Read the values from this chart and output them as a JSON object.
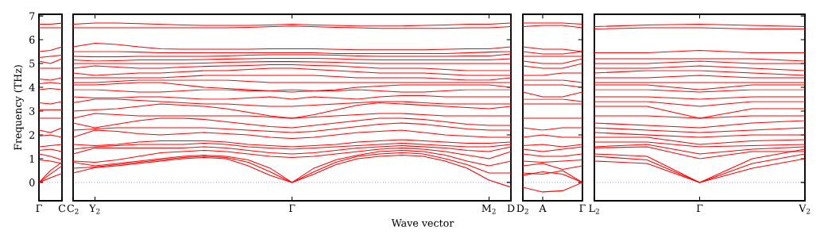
{
  "chart_data": [
    {
      "type": "line",
      "ylabel": "Frequency (THz)",
      "categories": [
        "Γ",
        null,
        "C"
      ],
      "ylim": [
        -0.77,
        7.07
      ],
      "yticks": [
        0,
        1,
        2,
        3,
        4,
        5,
        6,
        7
      ],
      "ref_lines": [
        {
          "axis": "y",
          "value": 0,
          "color": "#0000ff",
          "line_style": "dotted"
        }
      ],
      "series": [
        {
          "color": "#ff0000",
          "values": [
            0,
            0.2,
            0.38
          ]
        },
        {
          "color": "#ff0000",
          "values": [
            0,
            0.35,
            0.7
          ]
        },
        {
          "color": "#ff0000",
          "values": [
            0,
            0.5,
            0.85
          ]
        },
        {
          "color": "#ff0000",
          "values": [
            0.95,
            0.9,
            0.8
          ]
        },
        {
          "color": "#ff0000",
          "values": [
            1.2,
            1.1,
            0.95
          ]
        },
        {
          "color": "#ff0000",
          "values": [
            1.35,
            1.4,
            1.3
          ]
        },
        {
          "color": "#ff0000",
          "values": [
            1.5,
            1.55,
            1.6
          ]
        },
        {
          "color": "#ff0000",
          "values": [
            1.95,
            2.0,
            1.9
          ]
        },
        {
          "color": "#ff0000",
          "values": [
            2.2,
            2.1,
            2.3
          ]
        },
        {
          "color": "#ff0000",
          "values": [
            2.7,
            2.7,
            2.7
          ]
        },
        {
          "color": "#ff0000",
          "values": [
            3.05,
            3.05,
            3.05
          ]
        },
        {
          "color": "#ff0000",
          "values": [
            3.35,
            3.3,
            3.4
          ]
        },
        {
          "color": "#ff0000",
          "values": [
            3.9,
            3.95,
            3.9
          ]
        },
        {
          "color": "#ff0000",
          "values": [
            4.15,
            4.2,
            4.15
          ]
        },
        {
          "color": "#ff0000",
          "values": [
            4.35,
            4.3,
            4.4
          ]
        },
        {
          "color": "#ff0000",
          "values": [
            4.8,
            4.8,
            4.8
          ]
        },
        {
          "color": "#ff0000",
          "values": [
            5.1,
            5.0,
            5.2
          ]
        },
        {
          "color": "#ff0000",
          "values": [
            5.25,
            5.3,
            5.35
          ]
        },
        {
          "color": "#ff0000",
          "values": [
            5.5,
            5.55,
            5.7
          ]
        },
        {
          "color": "#ff0000",
          "values": [
            6.5,
            6.5,
            6.5
          ]
        },
        {
          "color": "#ff0000",
          "values": [
            6.65,
            6.65,
            6.7
          ]
        }
      ]
    },
    {
      "type": "line",
      "xlabel": "Wave vector",
      "tick_labels": "x",
      "categories": [
        "C$_{2}$",
        "Y$_{2}$",
        null,
        null,
        null,
        null,
        null,
        null,
        null,
        null,
        "Γ",
        null,
        null,
        null,
        null,
        null,
        null,
        null,
        null,
        "M$_{2}$",
        "D"
      ],
      "ylim": [
        -0.77,
        7.07
      ],
      "ref_lines": [
        {
          "axis": "y",
          "value": 0,
          "color": "#0000ff",
          "line_style": "dotted"
        }
      ],
      "series": [
        {
          "color": "#ff0000",
          "values": [
            0.4,
            0.62,
            0.7,
            0.8,
            0.9,
            1.0,
            1.05,
            1.0,
            0.7,
            0.3,
            0,
            0.35,
            0.75,
            1.0,
            1.1,
            1.15,
            1.1,
            0.9,
            0.6,
            0.1,
            -0.2
          ]
        },
        {
          "color": "#ff0000",
          "values": [
            0.6,
            0.65,
            0.75,
            0.85,
            0.95,
            1.05,
            1.1,
            1.05,
            0.85,
            0.45,
            0,
            0.45,
            0.85,
            1.1,
            1.2,
            1.25,
            1.2,
            1.0,
            0.75,
            0.4,
            0.4
          ]
        },
        {
          "color": "#ff0000",
          "values": [
            0.85,
            0.7,
            0.8,
            0.9,
            1.0,
            1.1,
            1.15,
            1.1,
            0.95,
            0.6,
            0,
            0.6,
            0.95,
            1.15,
            1.3,
            1.35,
            1.3,
            1.15,
            0.9,
            0.7,
            0.9
          ]
        },
        {
          "color": "#ff0000",
          "values": [
            0.9,
            0.85,
            0.95,
            1.1,
            1.25,
            1.3,
            1.35,
            1.3,
            1.2,
            1.1,
            1.05,
            1.1,
            1.2,
            1.3,
            1.4,
            1.45,
            1.4,
            1.3,
            1.15,
            1.0,
            1.3
          ]
        },
        {
          "color": "#ff0000",
          "values": [
            1.2,
            1.45,
            1.45,
            1.45,
            1.45,
            1.45,
            1.5,
            1.45,
            1.35,
            1.25,
            1.2,
            1.25,
            1.35,
            1.45,
            1.5,
            1.55,
            1.5,
            1.45,
            1.35,
            1.3,
            1.5
          ]
        },
        {
          "color": "#ff0000",
          "values": [
            1.4,
            1.5,
            1.55,
            1.6,
            1.6,
            1.6,
            1.65,
            1.6,
            1.5,
            1.45,
            1.4,
            1.45,
            1.5,
            1.55,
            1.6,
            1.65,
            1.6,
            1.55,
            1.5,
            1.5,
            1.6
          ]
        },
        {
          "color": "#ff0000",
          "values": [
            1.6,
            1.55,
            1.6,
            1.7,
            1.75,
            1.75,
            1.75,
            1.7,
            1.6,
            1.55,
            1.5,
            1.55,
            1.6,
            1.7,
            1.75,
            1.8,
            1.75,
            1.7,
            1.65,
            1.65,
            1.7
          ]
        },
        {
          "color": "#ff0000",
          "values": [
            1.9,
            2.2,
            2.15,
            2.05,
            2.0,
            2.05,
            2.1,
            2.05,
            2.0,
            1.9,
            1.85,
            1.9,
            2.0,
            2.1,
            2.15,
            2.2,
            2.1,
            2.0,
            1.95,
            1.9,
            1.9
          ]
        },
        {
          "color": "#ff0000",
          "values": [
            2.2,
            2.25,
            2.3,
            2.3,
            2.3,
            2.3,
            2.3,
            2.25,
            2.2,
            2.15,
            2.1,
            2.15,
            2.25,
            2.35,
            2.45,
            2.5,
            2.45,
            2.35,
            2.25,
            2.2,
            2.2
          ]
        },
        {
          "color": "#ff0000",
          "values": [
            2.5,
            2.3,
            2.45,
            2.6,
            2.7,
            2.7,
            2.65,
            2.55,
            2.45,
            2.35,
            2.3,
            2.4,
            2.5,
            2.6,
            2.7,
            2.7,
            2.65,
            2.55,
            2.45,
            2.4,
            2.4
          ]
        },
        {
          "color": "#ff0000",
          "values": [
            2.7,
            2.9,
            2.85,
            2.8,
            2.8,
            2.8,
            2.8,
            2.8,
            2.8,
            2.75,
            2.7,
            2.75,
            2.8,
            2.85,
            2.9,
            2.9,
            2.85,
            2.8,
            2.8,
            2.8,
            2.8
          ]
        },
        {
          "color": "#ff0000",
          "values": [
            3.0,
            3.05,
            3.1,
            3.2,
            3.3,
            3.25,
            3.2,
            3.1,
            2.95,
            2.8,
            2.7,
            2.85,
            3.05,
            3.25,
            3.35,
            3.3,
            3.25,
            3.2,
            3.15,
            3.1,
            3.2
          ]
        },
        {
          "color": "#ff0000",
          "values": [
            3.35,
            3.5,
            3.5,
            3.45,
            3.4,
            3.35,
            3.3,
            3.3,
            3.25,
            3.2,
            3.2,
            3.25,
            3.3,
            3.35,
            3.4,
            3.4,
            3.35,
            3.3,
            3.3,
            3.3,
            3.3
          ]
        },
        {
          "color": "#ff0000",
          "values": [
            3.6,
            3.55,
            3.55,
            3.6,
            3.6,
            3.55,
            3.5,
            3.5,
            3.55,
            3.6,
            3.5,
            3.6,
            3.55,
            3.5,
            3.6,
            3.65,
            3.65,
            3.6,
            3.6,
            3.6,
            3.6
          ]
        },
        {
          "color": "#ff0000",
          "values": [
            3.9,
            3.9,
            3.85,
            3.8,
            3.8,
            3.85,
            3.9,
            3.9,
            3.85,
            3.85,
            3.9,
            3.85,
            3.85,
            3.9,
            3.85,
            3.8,
            3.8,
            3.85,
            3.9,
            3.9,
            3.9
          ]
        },
        {
          "color": "#ff0000",
          "values": [
            4.1,
            4.1,
            4.15,
            4.2,
            4.2,
            4.1,
            4.0,
            3.95,
            3.9,
            3.85,
            3.8,
            3.85,
            3.9,
            4.0,
            4.05,
            4.1,
            4.1,
            4.1,
            4.1,
            4.1,
            4.0
          ]
        },
        {
          "color": "#ff0000",
          "values": [
            4.2,
            4.2,
            4.25,
            4.3,
            4.3,
            4.3,
            4.3,
            4.3,
            4.25,
            4.2,
            4.2,
            4.2,
            4.2,
            4.2,
            4.2,
            4.2,
            4.2,
            4.2,
            4.2,
            4.2,
            4.2
          ]
        },
        {
          "color": "#ff0000",
          "values": [
            4.4,
            4.4,
            4.4,
            4.4,
            4.4,
            4.45,
            4.5,
            4.5,
            4.5,
            4.5,
            4.5,
            4.5,
            4.45,
            4.4,
            4.4,
            4.4,
            4.4,
            4.35,
            4.3,
            4.3,
            4.4
          ]
        },
        {
          "color": "#ff0000",
          "values": [
            4.6,
            4.5,
            4.55,
            4.6,
            4.6,
            4.65,
            4.7,
            4.7,
            4.75,
            4.8,
            4.8,
            4.75,
            4.7,
            4.65,
            4.6,
            4.6,
            4.6,
            4.55,
            4.5,
            4.5,
            4.5
          ]
        },
        {
          "color": "#ff0000",
          "values": [
            4.8,
            4.9,
            4.85,
            4.8,
            4.8,
            4.85,
            4.88,
            4.9,
            4.92,
            4.95,
            4.95,
            4.92,
            4.9,
            4.85,
            4.8,
            4.8,
            4.8,
            4.75,
            4.7,
            4.7,
            4.7
          ]
        },
        {
          "color": "#ff0000",
          "values": [
            5.0,
            5.0,
            5.0,
            5.0,
            5.0,
            5.0,
            5.02,
            5.05,
            5.07,
            5.08,
            5.08,
            5.07,
            5.05,
            5.02,
            5.0,
            5.0,
            5.0,
            5.0,
            5.0,
            5.0,
            5.0
          ]
        },
        {
          "color": "#ff0000",
          "values": [
            5.15,
            5.1,
            5.12,
            5.15,
            5.15,
            5.15,
            5.17,
            5.19,
            5.2,
            5.22,
            5.22,
            5.22,
            5.2,
            5.17,
            5.15,
            5.15,
            5.15,
            5.15,
            5.15,
            5.15,
            5.2
          ]
        },
        {
          "color": "#ff0000",
          "values": [
            5.3,
            5.28,
            5.28,
            5.3,
            5.3,
            5.3,
            5.3,
            5.32,
            5.35,
            5.37,
            5.37,
            5.37,
            5.35,
            5.32,
            5.3,
            5.3,
            5.3,
            5.3,
            5.32,
            5.32,
            5.4
          ]
        },
        {
          "color": "#ff0000",
          "values": [
            5.5,
            5.5,
            5.5,
            5.48,
            5.45,
            5.45,
            5.45,
            5.45,
            5.45,
            5.45,
            5.45,
            5.45,
            5.42,
            5.42,
            5.42,
            5.42,
            5.42,
            5.42,
            5.45,
            5.48,
            5.5
          ]
        },
        {
          "color": "#ff0000",
          "values": [
            5.7,
            5.85,
            5.8,
            5.7,
            5.62,
            5.6,
            5.6,
            5.6,
            5.6,
            5.62,
            5.62,
            5.62,
            5.6,
            5.58,
            5.58,
            5.58,
            5.58,
            5.6,
            5.62,
            5.62,
            5.7
          ]
        },
        {
          "color": "#ff0000",
          "values": [
            6.5,
            6.5,
            6.5,
            6.5,
            6.5,
            6.5,
            6.5,
            6.5,
            6.52,
            6.55,
            6.58,
            6.55,
            6.52,
            6.5,
            6.48,
            6.48,
            6.48,
            6.48,
            6.5,
            6.5,
            6.55
          ]
        },
        {
          "color": "#ff0000",
          "values": [
            6.65,
            6.7,
            6.7,
            6.68,
            6.65,
            6.62,
            6.6,
            6.6,
            6.6,
            6.62,
            6.65,
            6.62,
            6.6,
            6.58,
            6.58,
            6.58,
            6.6,
            6.62,
            6.65,
            6.65,
            6.7
          ]
        }
      ]
    },
    {
      "type": "line",
      "tick_labels": "x",
      "categories": [
        "D$_{2}$",
        "A",
        null,
        "Γ"
      ],
      "ylim": [
        -0.77,
        7.07
      ],
      "ref_lines": [
        {
          "axis": "y",
          "value": 0,
          "color": "#0000ff",
          "line_style": "dotted"
        }
      ],
      "series": [
        {
          "color": "#ff0000",
          "values": [
            -0.2,
            -0.4,
            -0.35,
            0
          ]
        },
        {
          "color": "#ff0000",
          "values": [
            0.4,
            0.35,
            0.5,
            0
          ]
        },
        {
          "color": "#ff0000",
          "values": [
            0.3,
            0.45,
            0.35,
            0
          ]
        },
        {
          "color": "#ff0000",
          "values": [
            0.7,
            0.8,
            0.55,
            0.7
          ]
        },
        {
          "color": "#ff0000",
          "values": [
            0.9,
            0.85,
            0.9,
            0.95
          ]
        },
        {
          "color": "#ff0000",
          "values": [
            1.2,
            1.1,
            1.1,
            1.2
          ]
        },
        {
          "color": "#ff0000",
          "values": [
            1.4,
            1.3,
            1.4,
            1.5
          ]
        },
        {
          "color": "#ff0000",
          "values": [
            1.55,
            1.6,
            1.5,
            1.6
          ]
        },
        {
          "color": "#ff0000",
          "values": [
            1.9,
            2.0,
            1.9,
            1.9
          ]
        },
        {
          "color": "#ff0000",
          "values": [
            2.3,
            2.2,
            2.3,
            2.3
          ]
        },
        {
          "color": "#ff0000",
          "values": [
            2.7,
            2.7,
            2.7,
            2.7
          ]
        },
        {
          "color": "#ff0000",
          "values": [
            3.3,
            3.3,
            3.3,
            3.3
          ]
        },
        {
          "color": "#ff0000",
          "values": [
            3.5,
            3.5,
            3.5,
            3.4
          ]
        },
        {
          "color": "#ff0000",
          "values": [
            3.8,
            3.6,
            3.6,
            3.8
          ]
        },
        {
          "color": "#ff0000",
          "values": [
            4.1,
            4.1,
            4.1,
            4.0
          ]
        },
        {
          "color": "#ff0000",
          "values": [
            4.3,
            4.3,
            4.3,
            4.2
          ]
        },
        {
          "color": "#ff0000",
          "values": [
            4.5,
            4.5,
            4.6,
            4.6
          ]
        },
        {
          "color": "#ff0000",
          "values": [
            4.9,
            4.8,
            4.8,
            5.0
          ]
        },
        {
          "color": "#ff0000",
          "values": [
            5.1,
            5.0,
            5.0,
            5.2
          ]
        },
        {
          "color": "#ff0000",
          "values": [
            5.3,
            5.3,
            5.3,
            5.3
          ]
        },
        {
          "color": "#ff0000",
          "values": [
            5.5,
            5.4,
            5.4,
            5.5
          ]
        },
        {
          "color": "#ff0000",
          "values": [
            5.7,
            5.6,
            5.6,
            5.5
          ]
        },
        {
          "color": "#ff0000",
          "values": [
            6.55,
            6.6,
            6.6,
            6.5
          ]
        },
        {
          "color": "#ff0000",
          "values": [
            6.7,
            6.7,
            6.7,
            6.65
          ]
        }
      ]
    },
    {
      "type": "line",
      "tick_labels": "x",
      "categories": [
        "L$_{2}$",
        null,
        "Γ",
        null,
        "V$_{2}$"
      ],
      "ylim": [
        -0.77,
        7.07
      ],
      "yticks": [
        {
          "value": 0,
          "label": null
        },
        {
          "value": 1,
          "label": null
        },
        {
          "value": 2,
          "label": null
        },
        {
          "value": 3,
          "label": null
        },
        {
          "value": 4,
          "label": null
        },
        {
          "value": 5,
          "label": null
        },
        {
          "value": 6,
          "label": null
        },
        {
          "value": 7,
          "label": null
        }
      ],
      "ref_lines": [
        {
          "axis": "y",
          "value": 0,
          "color": "#0000ff",
          "line_style": "dotted"
        }
      ],
      "series": [
        {
          "color": "#ff0000",
          "values": [
            0.9,
            0.8,
            0,
            0.6,
            1.0
          ]
        },
        {
          "color": "#ff0000",
          "values": [
            1.1,
            0.95,
            0,
            0.8,
            1.2
          ]
        },
        {
          "color": "#ff0000",
          "values": [
            1.2,
            1.1,
            0,
            1.0,
            1.4
          ]
        },
        {
          "color": "#ff0000",
          "values": [
            1.45,
            1.5,
            1.0,
            1.3,
            1.3
          ]
        },
        {
          "color": "#ff0000",
          "values": [
            1.5,
            1.6,
            1.2,
            1.4,
            1.5
          ]
        },
        {
          "color": "#ff0000",
          "values": [
            1.7,
            1.7,
            1.5,
            1.55,
            1.6
          ]
        },
        {
          "color": "#ff0000",
          "values": [
            1.9,
            1.9,
            1.6,
            1.75,
            1.8
          ]
        },
        {
          "color": "#ff0000",
          "values": [
            2.1,
            2.0,
            1.9,
            2.0,
            2.0
          ]
        },
        {
          "color": "#ff0000",
          "values": [
            2.3,
            2.2,
            2.1,
            2.2,
            2.3
          ]
        },
        {
          "color": "#ff0000",
          "values": [
            2.5,
            2.4,
            2.3,
            2.5,
            2.6
          ]
        },
        {
          "color": "#ff0000",
          "values": [
            2.8,
            2.8,
            2.7,
            2.8,
            2.8
          ]
        },
        {
          "color": "#ff0000",
          "values": [
            3.2,
            3.2,
            2.7,
            3.1,
            3.1
          ]
        },
        {
          "color": "#ff0000",
          "values": [
            3.4,
            3.4,
            3.2,
            3.4,
            3.4
          ]
        },
        {
          "color": "#ff0000",
          "values": [
            3.6,
            3.6,
            3.5,
            3.6,
            3.6
          ]
        },
        {
          "color": "#ff0000",
          "values": [
            3.9,
            3.9,
            3.8,
            3.9,
            3.9
          ]
        },
        {
          "color": "#ff0000",
          "values": [
            4.1,
            4.1,
            3.9,
            4.1,
            4.1
          ]
        },
        {
          "color": "#ff0000",
          "values": [
            4.2,
            4.2,
            4.2,
            4.2,
            4.2
          ]
        },
        {
          "color": "#ff0000",
          "values": [
            4.4,
            4.4,
            4.5,
            4.4,
            4.4
          ]
        },
        {
          "color": "#ff0000",
          "values": [
            4.6,
            4.7,
            4.7,
            4.6,
            4.5
          ]
        },
        {
          "color": "#ff0000",
          "values": [
            4.8,
            4.8,
            4.9,
            4.8,
            4.7
          ]
        },
        {
          "color": "#ff0000",
          "values": [
            5.0,
            5.0,
            5.1,
            5.0,
            5.0
          ]
        },
        {
          "color": "#ff0000",
          "values": [
            5.2,
            5.2,
            5.2,
            5.2,
            5.1
          ]
        },
        {
          "color": "#ff0000",
          "values": [
            5.45,
            5.45,
            5.55,
            5.45,
            5.45
          ]
        },
        {
          "color": "#ff0000",
          "values": [
            6.45,
            6.5,
            6.5,
            6.45,
            6.45
          ]
        },
        {
          "color": "#ff0000",
          "values": [
            6.55,
            6.62,
            6.65,
            6.6,
            6.55
          ]
        }
      ]
    }
  ]
}
